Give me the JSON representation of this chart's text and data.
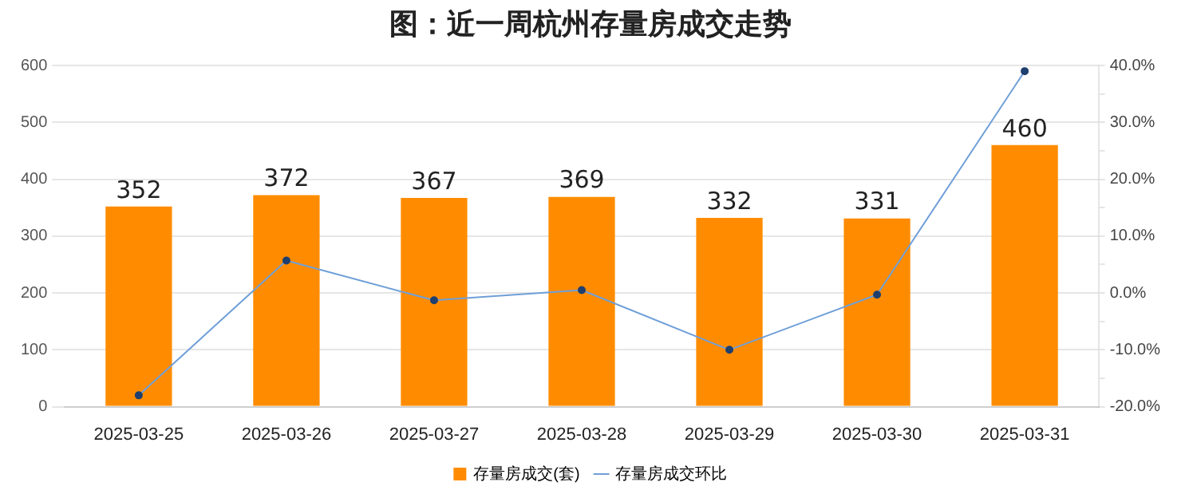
{
  "chart_data": {
    "type": "bar",
    "title": "图：近一周杭州存量房成交走势",
    "categories": [
      "2025-03-25",
      "2025-03-26",
      "2025-03-27",
      "2025-03-28",
      "2025-03-29",
      "2025-03-30",
      "2025-03-31"
    ],
    "series": [
      {
        "name": "存量房成交(套)",
        "color": "#ff8c00",
        "values": [
          352,
          372,
          367,
          369,
          332,
          331,
          460
        ],
        "value_labels": [
          "352",
          "372",
          "367",
          "369",
          "332",
          "331",
          "460"
        ]
      },
      {
        "name": "存量房成交环比",
        "type": "line",
        "axis": "y2",
        "color": "#6f9fd8",
        "values": [
          -18,
          5.7,
          -1.3,
          0.5,
          -10,
          -0.3,
          39
        ]
      }
    ],
    "ylim": [
      0,
      600
    ],
    "yticks": [
      0,
      100,
      200,
      300,
      400,
      500,
      600
    ],
    "y2lim": [
      -20,
      40
    ],
    "y2ticks": [
      {
        "value": -20,
        "label": "-20.0%"
      },
      {
        "value": -15,
        "label": null
      },
      {
        "value": -10,
        "label": "-10.0%"
      },
      {
        "value": -5,
        "label": null
      },
      {
        "value": 0,
        "label": "0.0%"
      },
      {
        "value": 5,
        "label": null
      },
      {
        "value": 10,
        "label": "10.0%"
      },
      {
        "value": 15,
        "label": null
      },
      {
        "value": 20,
        "label": "20.0%"
      },
      {
        "value": 25,
        "label": null
      },
      {
        "value": 30,
        "label": "30.0%"
      },
      {
        "value": 35,
        "label": null
      },
      {
        "value": 40,
        "label": "40.0%"
      }
    ],
    "grid": "y",
    "legend": "bottom",
    "marker": "circle"
  }
}
